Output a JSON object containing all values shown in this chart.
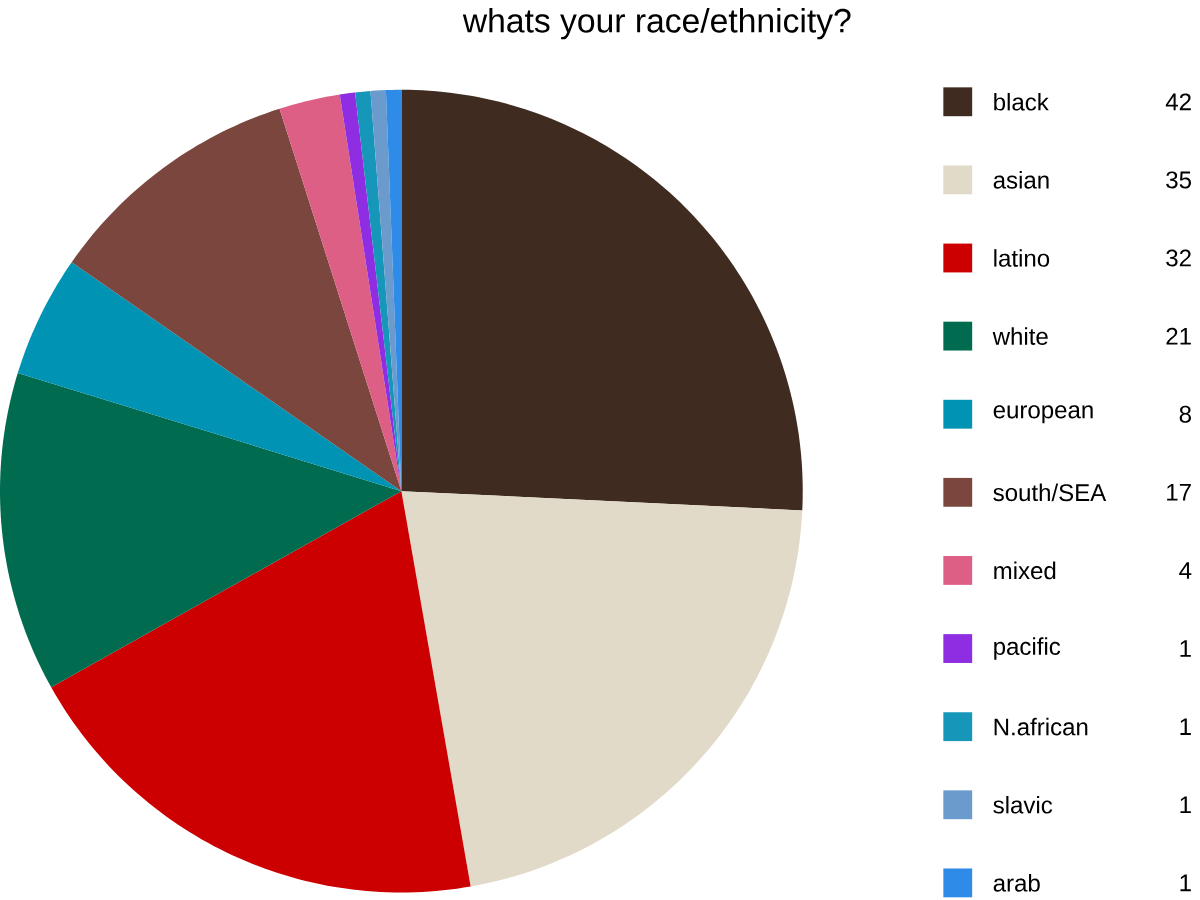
{
  "chart_data": {
    "type": "pie",
    "title": "whats your race/ethnicity?",
    "categories": [
      "black",
      "asian",
      "latino",
      "white",
      "european",
      "south/SEA",
      "mixed",
      "pacific",
      "N.african",
      "slavic",
      "arab"
    ],
    "values": [
      42,
      35,
      32,
      21,
      8,
      17,
      4,
      1,
      1,
      1,
      1
    ],
    "colors": [
      "#3f2b20",
      "#e2dac9",
      "#cc0000",
      "#006b4f",
      "#0093b3",
      "#7a463e",
      "#de5f85",
      "#8e2de2",
      "#1696b8",
      "#6b9bcc",
      "#2e8ce8"
    ],
    "legend": "right",
    "data_labels": true
  }
}
